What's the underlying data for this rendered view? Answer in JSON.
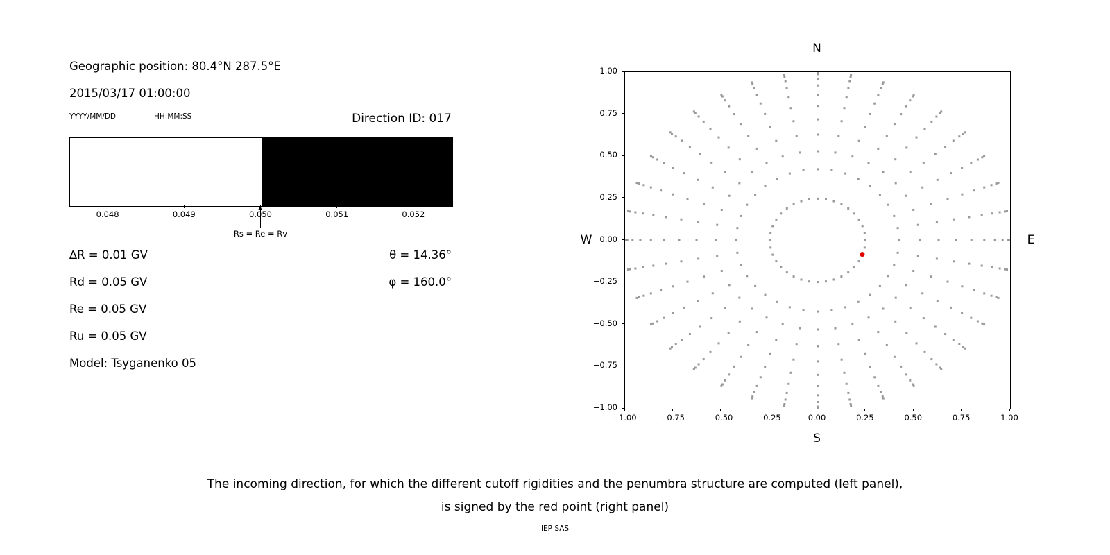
{
  "colors": {
    "marker_gray": "#999999",
    "selected_red": "#e50000",
    "text": "#000000"
  },
  "left_panel": {
    "geo_position": "Geographic position: 80.4°N 287.5°E",
    "datetime": "2015/03/17 01:00:00",
    "date_format_label": "YYYY/MM/DD",
    "time_format_label": "HH:MM:SS",
    "direction_id_label": "Direction ID: 017",
    "arrow_label": "Rs = Re = Rv",
    "values": [
      "∆R = 0.01 GV",
      "Rd = 0.05 GV",
      "Re = 0.05 GV",
      "Ru = 0.05 GV",
      "Model: Tsyganenko 05"
    ],
    "theta": "θ = 14.36°",
    "phi": "φ = 160.0°"
  },
  "right_panel": {
    "compass": {
      "top": "N",
      "bottom": "S",
      "left": "W",
      "right": "E"
    }
  },
  "caption": {
    "line1": "The incoming direction, for which the different cutoff rigidities and the penumbra structure are computed (left panel),",
    "line2": "is signed by the red point (right panel)"
  },
  "credit": "IEP SAS",
  "chart_data": [
    {
      "type": "area",
      "xlim": [
        0.0475,
        0.0525
      ],
      "x_ticks": [
        0.048,
        0.049,
        0.05,
        0.051,
        0.052
      ],
      "x_tick_decimals": 3,
      "bands": [
        {
          "x0": 0.0475,
          "x1": 0.05,
          "color": "#ffffff"
        },
        {
          "x0": 0.05,
          "x1": 0.0525,
          "color": "#000000"
        }
      ],
      "annotation": {
        "text": "Rs = Re = Rv",
        "x": 0.05
      },
      "grid": false
    },
    {
      "type": "scatter",
      "xlim": [
        -1,
        1
      ],
      "ylim": [
        -1,
        1
      ],
      "x_ticks": [
        -1,
        -0.75,
        -0.5,
        -0.25,
        0,
        0.25,
        0.5,
        0.75,
        1
      ],
      "y_ticks": [
        1,
        0.75,
        0.5,
        0.25,
        0,
        -0.25,
        -0.5,
        -0.75,
        -1
      ],
      "tick_decimals": 2,
      "grid": false,
      "direction_grid": {
        "azimuth_start_deg": 0,
        "azimuth_step_deg": 10,
        "azimuth_count": 36,
        "ring_radius": 0.248,
        "spoke_radii": [
          0.423,
          0.53,
          0.629,
          0.719,
          0.799,
          0.866,
          0.921,
          0.961,
          0.988,
          0.999
        ],
        "marker_color": "#999999"
      },
      "selected_point": {
        "x": 0.232,
        "y": -0.083,
        "color": "#e50000"
      }
    }
  ]
}
